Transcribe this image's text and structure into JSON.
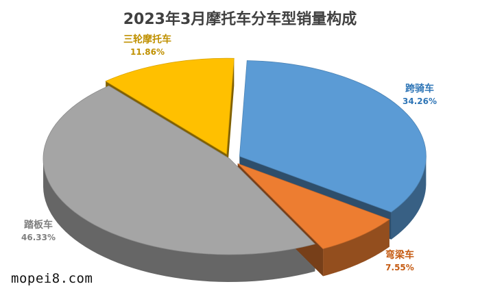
{
  "chart_data": {
    "type": "pie",
    "title": "2023年3月摩托车分车型销量构成",
    "slices": [
      {
        "label": "跨骑车",
        "value": "34.26%",
        "percent": 34.26,
        "color": "#5b9bd5",
        "label_color": "#2e75b6"
      },
      {
        "label": "弯梁车",
        "value": "7.55%",
        "percent": 7.55,
        "color": "#ed7d31",
        "label_color": "#c55a11"
      },
      {
        "label": "踏板车",
        "value": "46.33%",
        "percent": 46.33,
        "color": "#a5a5a5",
        "label_color": "#7f7f7f"
      },
      {
        "label": "三轮摩托车",
        "value": "11.86%",
        "percent": 11.86,
        "color": "#ffc000",
        "label_color": "#bf9000"
      }
    ],
    "legend": "none",
    "style": "3d-exploded"
  },
  "watermark": "mopei8.com"
}
